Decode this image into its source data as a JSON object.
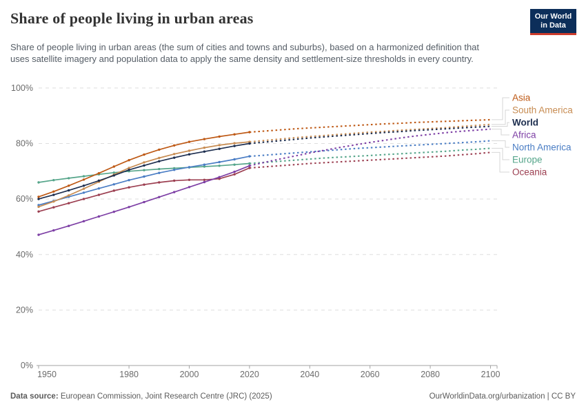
{
  "header": {
    "title": "Share of people living in urban areas",
    "subtitle": "Share of people living in urban areas (the sum of cities and towns and suburbs), based on a harmonized definition that uses satellite imagery and population data to apply the same density and settlement-size thresholds in every country."
  },
  "logo": {
    "line1": "Our World",
    "line2": "in Data",
    "bg_color": "#0c2e5a",
    "accent_color": "#cc3b2b"
  },
  "footer": {
    "source_label": "Data source:",
    "source_text": " European Commission, Joint Research Centre (JRC) (2025)",
    "link_text": "OurWorldinData.org/urbanization | CC BY"
  },
  "styles": {
    "axis_text_color": "#6b6b6b",
    "grid_color": "#dedede",
    "axis_line_color": "#a3a3a3",
    "connector_color": "#d6d6d6"
  },
  "chart_data": {
    "type": "line",
    "unit": "%",
    "title": "Share of people living in urban areas",
    "xlabel": "",
    "ylabel": "",
    "xlim": [
      1950,
      2100
    ],
    "ylim": [
      0,
      100
    ],
    "grid": true,
    "legend_position": "right",
    "x_ticks": [
      1950,
      1980,
      2000,
      2020,
      2040,
      2060,
      2080,
      2100
    ],
    "y_ticks": [
      0,
      20,
      40,
      60,
      80,
      100
    ],
    "x_solid": [
      1950,
      1955,
      1960,
      1965,
      1970,
      1975,
      1980,
      1985,
      1990,
      1995,
      2000,
      2005,
      2010,
      2015,
      2020
    ],
    "x_projection": [
      2025,
      2030,
      2035,
      2040,
      2045,
      2050,
      2055,
      2060,
      2065,
      2070,
      2075,
      2080,
      2085,
      2090,
      2095,
      2100
    ],
    "series": [
      {
        "name": "Asia",
        "color": "#be5915",
        "bold": false,
        "values": [
          60.8,
          62.7,
          64.8,
          67.0,
          69.3,
          71.7,
          74.0,
          76.0,
          77.8,
          79.3,
          80.6,
          81.6,
          82.5,
          83.3,
          84.1
        ],
        "projection": [
          84.5,
          84.9,
          85.3,
          85.6,
          85.9,
          86.2,
          86.5,
          86.8,
          87.1,
          87.3,
          87.6,
          87.8,
          88.0,
          88.2,
          88.4,
          88.6
        ]
      },
      {
        "name": "South America",
        "color": "#c78c52",
        "bold": false,
        "values": [
          57.2,
          59.1,
          61.3,
          63.7,
          66.2,
          68.8,
          71.2,
          73.2,
          74.8,
          76.2,
          77.4,
          78.5,
          79.4,
          80.1,
          80.6
        ],
        "projection": [
          81.1,
          81.6,
          82.1,
          82.5,
          82.9,
          83.3,
          83.7,
          84.1,
          84.4,
          84.8,
          85.1,
          85.4,
          85.7,
          86.1,
          86.5,
          86.9
        ]
      },
      {
        "name": "World",
        "color": "#1d2e4f",
        "bold": true,
        "values": [
          60.0,
          61.5,
          63.1,
          64.8,
          66.6,
          68.5,
          70.5,
          72.1,
          73.6,
          74.9,
          76.1,
          77.1,
          78.1,
          79.1,
          80.0
        ],
        "projection": [
          80.5,
          81.0,
          81.5,
          82.0,
          82.4,
          82.8,
          83.2,
          83.6,
          84.0,
          84.3,
          84.7,
          85.0,
          85.3,
          85.6,
          85.9,
          86.2
        ]
      },
      {
        "name": "Africa",
        "color": "#7d3fa5",
        "bold": false,
        "values": [
          47.1,
          48.7,
          50.3,
          52.0,
          53.7,
          55.4,
          57.1,
          58.9,
          60.7,
          62.5,
          64.3,
          66.1,
          67.9,
          69.8,
          72.0
        ],
        "projection": [
          73.2,
          74.4,
          75.5,
          76.6,
          77.6,
          78.6,
          79.5,
          80.4,
          81.2,
          82.0,
          82.7,
          83.3,
          83.9,
          84.4,
          84.8,
          85.2
        ]
      },
      {
        "name": "North America",
        "color": "#4a7dc4",
        "bold": false,
        "values": [
          57.8,
          59.3,
          60.8,
          62.3,
          63.8,
          65.3,
          66.8,
          68.1,
          69.4,
          70.5,
          71.5,
          72.4,
          73.3,
          74.3,
          75.4
        ],
        "projection": [
          75.8,
          76.2,
          76.6,
          77.0,
          77.4,
          77.8,
          78.2,
          78.5,
          78.8,
          79.1,
          79.4,
          79.7,
          80.0,
          80.3,
          80.6,
          81.0
        ]
      },
      {
        "name": "Europe",
        "color": "#55a58a",
        "bold": false,
        "values": [
          66.0,
          66.8,
          67.5,
          68.2,
          68.9,
          69.5,
          70.0,
          70.4,
          70.8,
          71.1,
          71.4,
          71.7,
          72.0,
          72.4,
          72.8
        ],
        "projection": [
          73.2,
          73.6,
          74.0,
          74.4,
          74.8,
          75.1,
          75.4,
          75.7,
          76.0,
          76.3,
          76.6,
          76.9,
          77.2,
          77.6,
          77.9,
          78.3
        ]
      },
      {
        "name": "Oceania",
        "color": "#9c3f51",
        "bold": false,
        "values": [
          55.5,
          57.0,
          58.5,
          60.0,
          61.5,
          63.0,
          64.2,
          65.2,
          66.0,
          66.6,
          66.9,
          66.9,
          67.3,
          68.9,
          71.2
        ],
        "projection": [
          71.6,
          72.0,
          72.4,
          72.8,
          73.1,
          73.4,
          73.7,
          74.0,
          74.3,
          74.6,
          74.9,
          75.2,
          75.5,
          75.9,
          76.3,
          76.8
        ]
      }
    ]
  }
}
